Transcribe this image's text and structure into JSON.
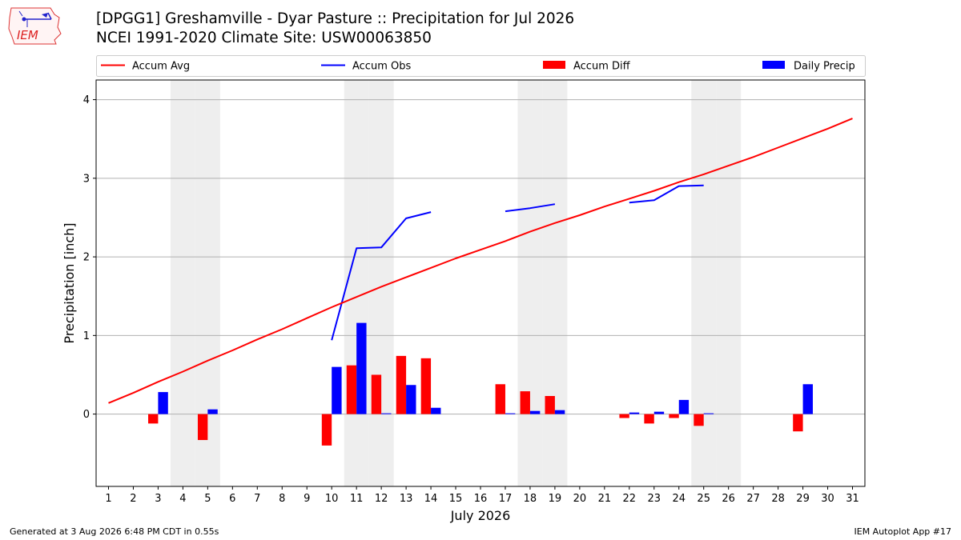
{
  "header": {
    "title_line1": "[DPGG1] Greshamville - Dyar Pasture :: Precipitation for Jul 2026",
    "title_line2": "NCEI 1991-2020 Climate Site: USW00063850",
    "logo_text": "IEM"
  },
  "footer": {
    "generated": "Generated at 3 Aug 2026 6:48 PM CDT in 0.55s",
    "app": "IEM Autoplot App #17"
  },
  "colors": {
    "avg": "#ff0000",
    "obs": "#0000ff",
    "diff": "#ff0000",
    "daily": "#0000ff",
    "weekend": "#eeeeee",
    "grid": "#b0b0b0"
  },
  "chart_data": {
    "type": "bar",
    "xlabel": "July 2026",
    "ylabel": "Precipitation [inch]",
    "xlim": [
      0.5,
      31.5
    ],
    "ylim": [
      -0.92,
      4.25
    ],
    "yticks": [
      0,
      1,
      2,
      3,
      4
    ],
    "grid": "horizontal",
    "legend_position": "top",
    "legend": [
      "Accum Avg",
      "Accum Obs",
      "Accum Diff",
      "Daily Precip"
    ],
    "x": [
      1,
      2,
      3,
      4,
      5,
      6,
      7,
      8,
      9,
      10,
      11,
      12,
      13,
      14,
      15,
      16,
      17,
      18,
      19,
      20,
      21,
      22,
      23,
      24,
      25,
      26,
      27,
      28,
      29,
      30,
      31
    ],
    "weekend_days": [
      4,
      5,
      11,
      12,
      18,
      19,
      25,
      26
    ],
    "series": [
      {
        "name": "Accum Avg",
        "kind": "line",
        "values": [
          0.14,
          0.27,
          0.41,
          0.54,
          0.68,
          0.81,
          0.95,
          1.08,
          1.22,
          1.36,
          1.49,
          1.62,
          1.74,
          1.86,
          1.98,
          2.09,
          2.2,
          2.32,
          2.43,
          2.53,
          2.64,
          2.74,
          2.84,
          2.95,
          3.05,
          3.16,
          3.27,
          3.39,
          3.51,
          3.63,
          3.76
        ]
      },
      {
        "name": "Accum Obs",
        "kind": "line",
        "values": [
          null,
          null,
          null,
          null,
          null,
          null,
          null,
          null,
          null,
          0.94,
          2.11,
          2.12,
          2.49,
          2.57,
          null,
          null,
          2.58,
          2.62,
          2.67,
          null,
          null,
          2.69,
          2.72,
          2.9,
          2.91,
          null,
          null,
          null,
          null,
          null,
          null
        ]
      },
      {
        "name": "Accum Diff",
        "kind": "bar",
        "values": [
          0,
          0,
          -0.12,
          0,
          -0.33,
          0,
          0,
          0,
          0,
          -0.4,
          0.62,
          0.5,
          0.74,
          0.71,
          0,
          0,
          0.38,
          0.29,
          0.23,
          0,
          0,
          -0.05,
          -0.12,
          -0.05,
          -0.15,
          0,
          0,
          0,
          -0.22,
          0,
          0
        ]
      },
      {
        "name": "Daily Precip",
        "kind": "bar",
        "values": [
          0,
          0,
          0.28,
          0,
          0.06,
          0,
          0,
          0,
          0,
          0.6,
          1.16,
          0.01,
          0.37,
          0.08,
          0,
          0,
          0.01,
          0.04,
          0.05,
          0,
          0,
          0.02,
          0.03,
          0.18,
          0.01,
          0,
          0,
          0,
          0.38,
          0,
          0
        ]
      }
    ]
  }
}
